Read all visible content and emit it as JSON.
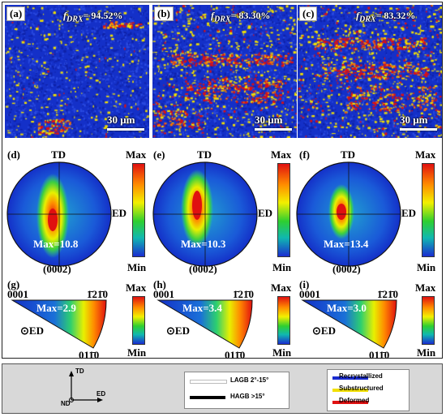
{
  "panels": {
    "a": {
      "label": "(a)",
      "fdrx_symbol": "f",
      "fdrx_sub": "DRX",
      "fdrx_value": "= 94.52%",
      "scale": "30 μm"
    },
    "b": {
      "label": "(b)",
      "fdrx_symbol": "f",
      "fdrx_sub": "DRX",
      "fdrx_value": "= 83.30%",
      "scale": "30 μm"
    },
    "c": {
      "label": "(c)",
      "fdrx_symbol": "f",
      "fdrx_sub": "DRX",
      "fdrx_value": "= 83.32%",
      "scale": "30 μm"
    },
    "d": {
      "label": "(d)",
      "td": "TD",
      "ed": "ED",
      "max_text": "Max=10.8",
      "plane": "(0002)"
    },
    "e": {
      "label": "(e)",
      "td": "TD",
      "ed": "ED",
      "max_text": "Max=10.3",
      "plane": "(0002)"
    },
    "f": {
      "label": "(f)",
      "td": "TD",
      "ed": "ED",
      "max_text": "Max=13.4",
      "plane": "(0002)"
    },
    "g": {
      "label": "(g)",
      "corner1": "0001",
      "corner2": "1̄21̄0",
      "corner3": "011̄0",
      "max_text": "Max=2.9",
      "ed": "ED"
    },
    "h": {
      "label": "(h)",
      "corner1": "0001",
      "corner2": "1̄21̄0",
      "corner3": "011̄0",
      "max_text": "Max=3.4",
      "ed": "ED"
    },
    "i": {
      "label": "(i)",
      "corner1": "0001",
      "corner2": "1̄21̄0",
      "corner3": "011̄0",
      "max_text": "Max=3.0",
      "ed": "ED"
    }
  },
  "colorbar": {
    "max": "Max",
    "min": "Min"
  },
  "legend": {
    "axes": {
      "td": "TD",
      "nd": "ND",
      "ed": "ED"
    },
    "boundaries": [
      {
        "label": "LAGB 2°-15°",
        "color": "#ffffff"
      },
      {
        "label": "HAGB >15°",
        "color": "#000000"
      }
    ],
    "grain_types": [
      {
        "label": "Recrystallized",
        "color": "#1a2cd0"
      },
      {
        "label": "Substructured",
        "color": "#f2e000"
      },
      {
        "label": "Deformed",
        "color": "#e01010"
      }
    ]
  }
}
